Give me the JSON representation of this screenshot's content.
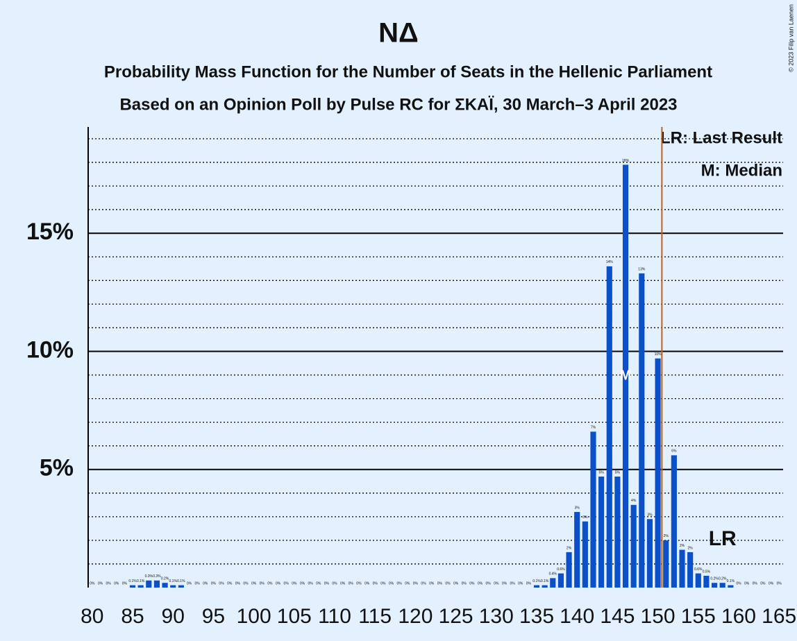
{
  "chart_data": {
    "type": "bar",
    "title": "ΝΔ",
    "subtitle": "Probability Mass Function for the Number of Seats in the Hellenic Parliament",
    "subtitle2": "Based on an Opinion Poll by Pulse RC for ΣΚΑΪ, 30 March–3 April 2023",
    "copyright": "© 2023 Filip van Laenen",
    "legend": [
      "LR: Last Result",
      "M: Median"
    ],
    "x": [
      80,
      81,
      82,
      83,
      84,
      85,
      86,
      87,
      88,
      89,
      90,
      91,
      92,
      93,
      94,
      95,
      96,
      97,
      98,
      99,
      100,
      101,
      102,
      103,
      104,
      105,
      106,
      107,
      108,
      109,
      110,
      111,
      112,
      113,
      114,
      115,
      116,
      117,
      118,
      119,
      120,
      121,
      122,
      123,
      124,
      125,
      126,
      127,
      128,
      129,
      130,
      131,
      132,
      133,
      134,
      135,
      136,
      137,
      138,
      139,
      140,
      141,
      142,
      143,
      144,
      145,
      146,
      147,
      148,
      149,
      150,
      151,
      152,
      153,
      154,
      155,
      156,
      157,
      158,
      159,
      160,
      161,
      162,
      163,
      164,
      165
    ],
    "values": [
      0,
      0,
      0,
      0,
      0,
      0.1,
      0.1,
      0.3,
      0.3,
      0.2,
      0.1,
      0.1,
      0,
      0,
      0,
      0,
      0,
      0,
      0,
      0,
      0,
      0,
      0,
      0,
      0,
      0,
      0,
      0,
      0,
      0,
      0,
      0,
      0,
      0,
      0,
      0,
      0,
      0,
      0,
      0,
      0,
      0,
      0,
      0,
      0,
      0,
      0,
      0,
      0,
      0,
      0,
      0,
      0,
      0,
      0,
      0.1,
      0.1,
      0.4,
      0.6,
      1.5,
      3.2,
      2.8,
      6.6,
      4.7,
      13.6,
      4.7,
      17.9,
      3.5,
      13.3,
      2.9,
      9.7,
      2.0,
      5.6,
      1.6,
      1.5,
      0.6,
      0.5,
      0.2,
      0.2,
      0.1,
      0,
      0,
      0,
      0,
      0,
      0
    ],
    "value_labels": [
      "0%",
      "0%",
      "0%",
      "0%",
      "0%",
      "0.1%",
      "0.1%",
      "0.3%",
      "0.3%",
      "0.2%",
      "0.1%",
      "0.1%",
      "0%",
      "0%",
      "0%",
      "0%",
      "0%",
      "0%",
      "0%",
      "0%",
      "0%",
      "0%",
      "0%",
      "0%",
      "0%",
      "0%",
      "0%",
      "0%",
      "0%",
      "0%",
      "0%",
      "0%",
      "0%",
      "0%",
      "0%",
      "0%",
      "0%",
      "0%",
      "0%",
      "0%",
      "0%",
      "0%",
      "0%",
      "0%",
      "0%",
      "0%",
      "0%",
      "0%",
      "0%",
      "0%",
      "0%",
      "0%",
      "0%",
      "0%",
      "0%",
      "0.1%",
      "0.1%",
      "0.4%",
      "0.6%",
      "2%",
      "3%",
      "3%",
      "7%",
      "5%",
      "14%",
      "5%",
      "18%",
      "4%",
      "13%",
      "3%",
      "10%",
      "2%",
      "6%",
      "2%",
      "2%",
      "0.6%",
      "0.5%",
      "0.2%",
      "0.2%",
      "0.1%",
      "0%",
      "0%",
      "0%",
      "0%",
      "0%",
      "0%"
    ],
    "color": "#0b50c8",
    "xlim": [
      79.5,
      165.5
    ],
    "xticks": [
      80,
      85,
      90,
      95,
      100,
      105,
      110,
      115,
      120,
      125,
      130,
      135,
      140,
      145,
      150,
      155,
      160,
      165
    ],
    "ylim": [
      0,
      19.5
    ],
    "yticks": [
      {
        "value": 5,
        "label": "5%"
      },
      {
        "value": 10,
        "label": "10%"
      },
      {
        "value": 15,
        "label": "15%"
      }
    ],
    "minor_yticks": [
      1,
      2,
      3,
      4,
      6,
      7,
      8,
      9,
      11,
      12,
      13,
      14,
      16,
      17,
      18,
      19
    ],
    "median": 146,
    "median_marker": "M",
    "last_result": 158,
    "last_result_marker": "LR",
    "majority_line": 150.5
  }
}
